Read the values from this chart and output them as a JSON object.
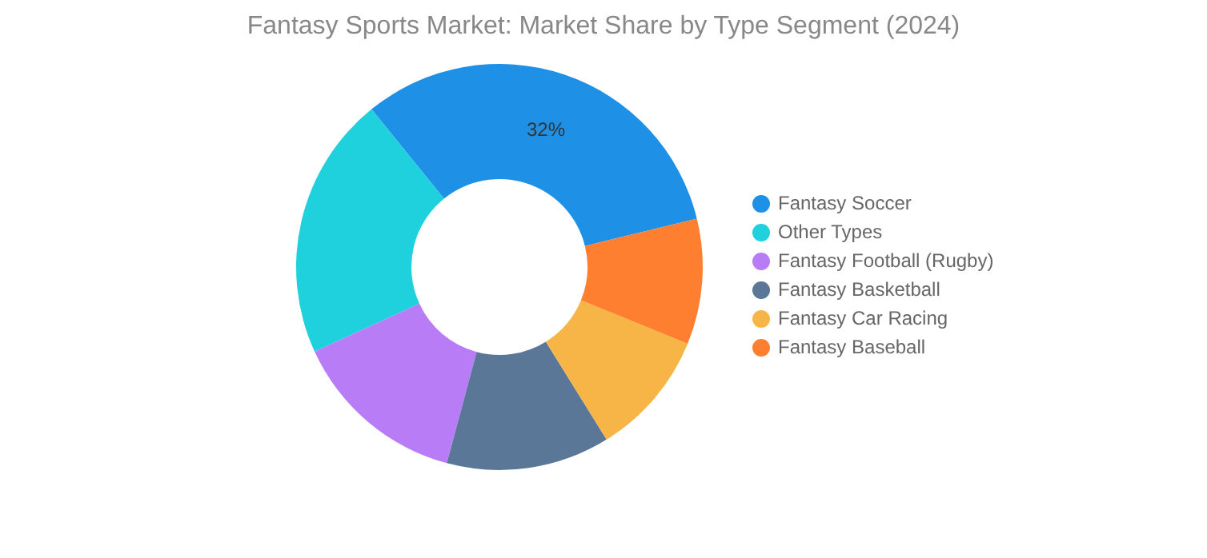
{
  "chart_data": {
    "type": "donut",
    "title": "Fantasy Sports Market: Market Share by Type Segment (2024)",
    "categories": [
      "Fantasy Soccer",
      "Other Types",
      "Fantasy Football (Rugby)",
      "Fantasy Basketball",
      "Fantasy Car Racing",
      "Fantasy Baseball"
    ],
    "values": [
      32,
      21,
      14,
      13,
      10,
      10
    ],
    "colors": [
      "#1e90e6",
      "#1fd0dd",
      "#b87df6",
      "#5b7798",
      "#f8b547",
      "#ff7f30"
    ],
    "value_labels": [
      "32%",
      null,
      null,
      null,
      null,
      null
    ],
    "legend": "right"
  }
}
